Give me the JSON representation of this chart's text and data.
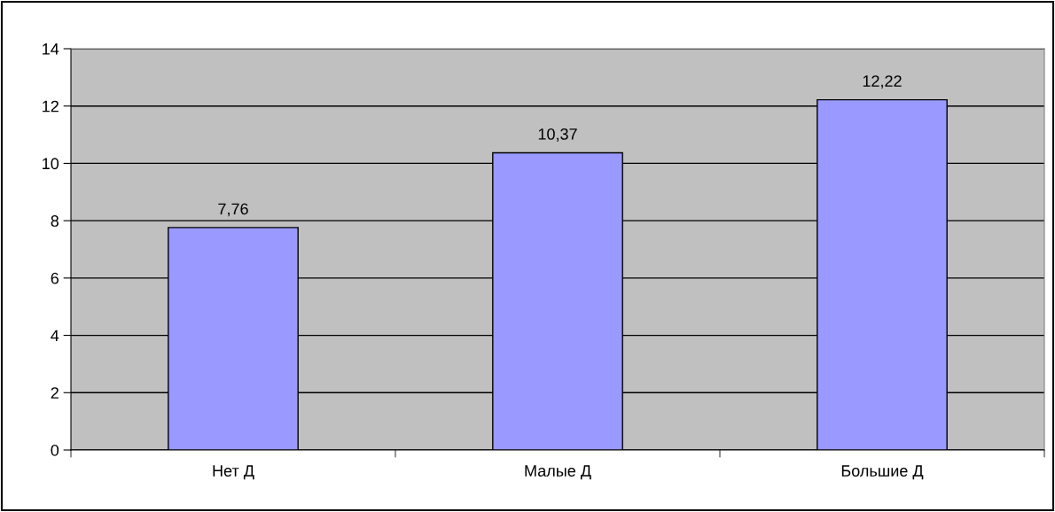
{
  "chart_data": {
    "type": "bar",
    "categories": [
      "Нет Д",
      "Малые Д",
      "Большие Д"
    ],
    "values": [
      7.76,
      10.37,
      12.22
    ],
    "value_labels": [
      "7,76",
      "10,37",
      "12,22"
    ],
    "color": "#9999ff",
    "ylim": [
      0,
      14
    ],
    "yticks": [
      0,
      2,
      4,
      6,
      8,
      10,
      12,
      14
    ],
    "grid": "y",
    "legend": false
  }
}
